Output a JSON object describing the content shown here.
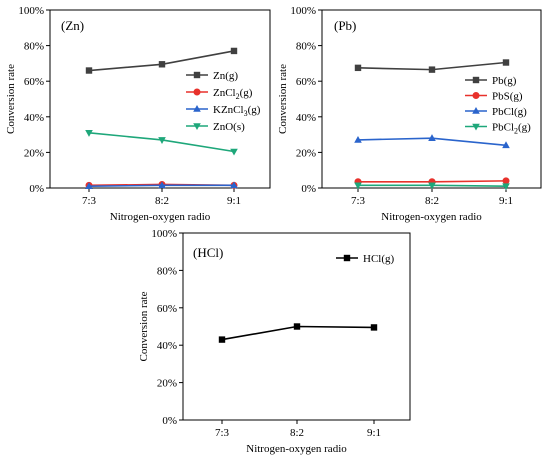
{
  "chart_data": [
    {
      "type": "line",
      "panel_label": "(Zn)",
      "categories": [
        "7:3",
        "8:2",
        "9:1"
      ],
      "xlabel": "Nitrogen-oxygen radio",
      "ylabel": "Conversion rate",
      "ylim": [
        0,
        100
      ],
      "yticks": [
        "0%",
        "20%",
        "40%",
        "60%",
        "80%",
        "100%"
      ],
      "legend_position": "right",
      "series": [
        {
          "name": "Zn(g)",
          "values": [
            66,
            69.5,
            77
          ],
          "color": "#404040",
          "marker": "square"
        },
        {
          "name": "ZnCl",
          "sub": "2",
          "tail": "(g)",
          "values": [
            1.5,
            2,
            1.5
          ],
          "color": "#e8312b",
          "marker": "circle"
        },
        {
          "name": "KZnCl",
          "sub": "3",
          "tail": "(g)",
          "values": [
            1,
            1.5,
            1.5
          ],
          "color": "#2a64cc",
          "marker": "triangle-up"
        },
        {
          "name": "ZnO(s)",
          "values": [
            31,
            27,
            20.5
          ],
          "color": "#1ea77a",
          "marker": "triangle-down"
        }
      ]
    },
    {
      "type": "line",
      "panel_label": "(Pb)",
      "categories": [
        "7:3",
        "8:2",
        "9:1"
      ],
      "xlabel": "Nitrogen-oxygen radio",
      "ylabel": "Conversion rate",
      "ylim": [
        0,
        100
      ],
      "yticks": [
        "0%",
        "20%",
        "40%",
        "60%",
        "80%",
        "100%"
      ],
      "legend_position": "right",
      "series": [
        {
          "name": "Pb(g)",
          "values": [
            67.5,
            66.5,
            70.5
          ],
          "color": "#404040",
          "marker": "square"
        },
        {
          "name": "PbS(g)",
          "values": [
            3.5,
            3.5,
            4
          ],
          "color": "#e8312b",
          "marker": "circle"
        },
        {
          "name": "PbCl(g)",
          "values": [
            27,
            28,
            24
          ],
          "color": "#2a64cc",
          "marker": "triangle-up"
        },
        {
          "name": "PbCl",
          "sub": "2",
          "tail": "(g)",
          "values": [
            1.5,
            1.5,
            1
          ],
          "color": "#1ea77a",
          "marker": "triangle-down"
        }
      ]
    },
    {
      "type": "line",
      "panel_label": "(HCl)",
      "categories": [
        "7:3",
        "8:2",
        "9:1"
      ],
      "xlabel": "Nitrogen-oxygen radio",
      "ylabel": "Conversion rate",
      "ylim": [
        0,
        100
      ],
      "yticks": [
        "0%",
        "20%",
        "40%",
        "60%",
        "80%",
        "100%"
      ],
      "legend_position": "top-right",
      "series": [
        {
          "name": "HCl(g)",
          "values": [
            43,
            50,
            49.5
          ],
          "color": "#000000",
          "marker": "square"
        }
      ]
    }
  ]
}
